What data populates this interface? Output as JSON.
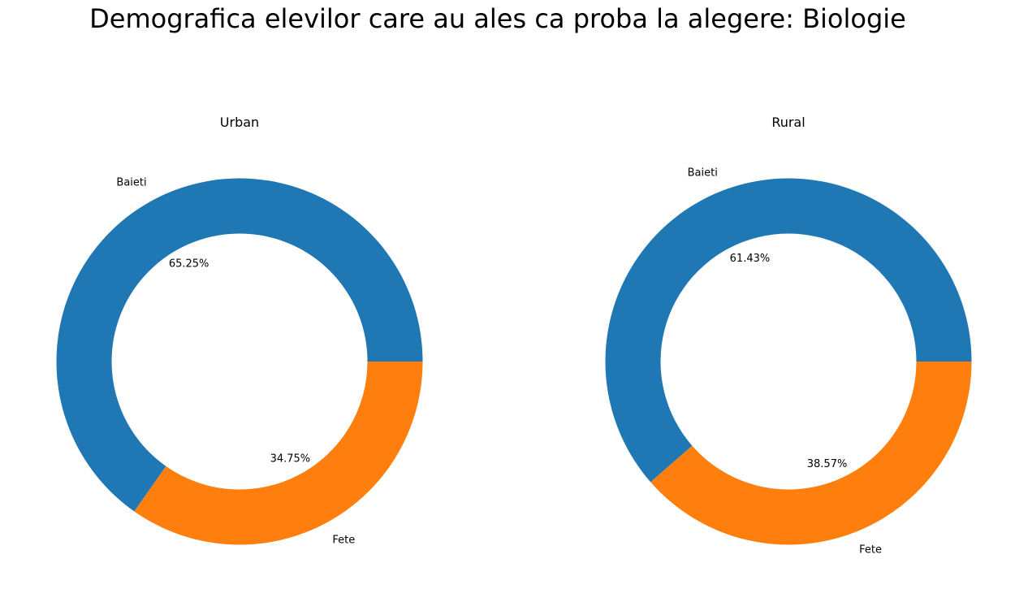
{
  "chart_data": [
    {
      "type": "pie",
      "donut": true,
      "title": "Urban",
      "categories": [
        "Baieti",
        "Fete"
      ],
      "values": [
        65.25,
        34.75
      ],
      "percent_labels": [
        "65.25%",
        "34.75%"
      ],
      "colors": [
        "#1f77b4",
        "#ff7f0e"
      ],
      "start_angle_deg": 0,
      "direction": "counterclockwise"
    },
    {
      "type": "pie",
      "donut": true,
      "title": "Rural",
      "categories": [
        "Baieti",
        "Fete"
      ],
      "values": [
        61.43,
        38.57
      ],
      "percent_labels": [
        "61.43%",
        "38.57%"
      ],
      "colors": [
        "#1f77b4",
        "#ff7f0e"
      ],
      "start_angle_deg": 0,
      "direction": "counterclockwise"
    }
  ],
  "figure": {
    "title": "Demografica elevilor care au ales ca proba la alegere: Biologie"
  }
}
